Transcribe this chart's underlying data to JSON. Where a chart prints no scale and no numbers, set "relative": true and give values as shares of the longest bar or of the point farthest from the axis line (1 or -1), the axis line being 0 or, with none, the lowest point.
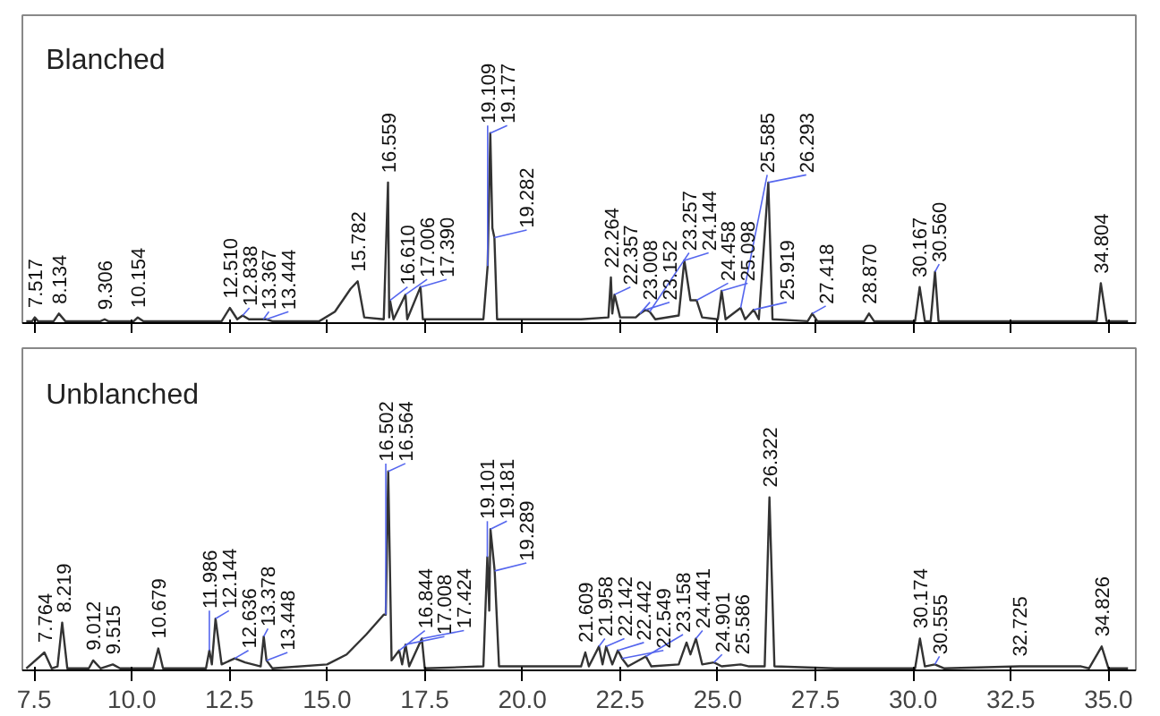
{
  "chart_data": [
    {
      "type": "line",
      "title": "Blanched",
      "relative": true,
      "tick_labels": false,
      "xlim": [
        7.2,
        35.7
      ],
      "xticks": [
        {
          "value": 7.5,
          "label": null
        },
        {
          "value": 10,
          "label": null
        },
        {
          "value": 12.5,
          "label": null
        },
        {
          "value": 15,
          "label": null
        },
        {
          "value": 17.5,
          "label": null
        },
        {
          "value": 20,
          "label": null
        },
        {
          "value": 22.5,
          "label": null
        },
        {
          "value": 25,
          "label": null
        },
        {
          "value": 27.5,
          "label": null
        },
        {
          "value": 30,
          "label": null
        },
        {
          "value": 32.5,
          "label": null
        },
        {
          "value": 35,
          "label": null
        }
      ],
      "series": [
        {
          "color": "#333333",
          "x": [
            7.3,
            7.45,
            7.517,
            7.6,
            8.0,
            8.134,
            8.3,
            9.2,
            9.306,
            9.4,
            10.05,
            10.154,
            10.3,
            12.3,
            12.51,
            12.7,
            12.838,
            13.0,
            13.367,
            13.444,
            13.6,
            14.8,
            15.2,
            15.6,
            15.782,
            15.95,
            16.45,
            16.559,
            16.59,
            16.61,
            16.7,
            17.006,
            17.05,
            17.39,
            17.45,
            19.0,
            19.109,
            19.177,
            19.23,
            19.282,
            19.35,
            20.5,
            21.5,
            22.2,
            22.264,
            22.3,
            22.357,
            22.5,
            22.9,
            23.008,
            23.152,
            23.257,
            23.4,
            24.0,
            24.144,
            24.3,
            24.458,
            24.6,
            25.0,
            25.098,
            25.2,
            25.585,
            25.7,
            25.919,
            26.05,
            26.293,
            26.4,
            27.3,
            27.418,
            27.55,
            28.75,
            28.87,
            29.0,
            30.05,
            30.167,
            30.3,
            30.45,
            30.56,
            30.65,
            32.0,
            34.7,
            34.804,
            34.95,
            35.5
          ],
          "values": [
            0.01,
            0.01,
            0.03,
            0.01,
            0.01,
            0.05,
            0.01,
            0.01,
            0.02,
            0.01,
            0.01,
            0.03,
            0.01,
            0.01,
            0.08,
            0.02,
            0.04,
            0.02,
            0.02,
            0.02,
            0.01,
            0.01,
            0.06,
            0.18,
            0.22,
            0.03,
            0.02,
            0.74,
            0.03,
            0.12,
            0.02,
            0.15,
            0.02,
            0.19,
            0.02,
            0.02,
            0.3,
            1.0,
            0.5,
            0.45,
            0.02,
            0.02,
            0.02,
            0.03,
            0.24,
            0.05,
            0.15,
            0.03,
            0.03,
            0.05,
            0.07,
            0.06,
            0.02,
            0.04,
            0.33,
            0.12,
            0.12,
            0.03,
            0.02,
            0.17,
            0.02,
            0.08,
            0.02,
            0.07,
            0.02,
            0.74,
            0.02,
            0.01,
            0.05,
            0.01,
            0.01,
            0.05,
            0.01,
            0.01,
            0.19,
            0.01,
            0.01,
            0.27,
            0.01,
            0.01,
            0.01,
            0.21,
            0.01,
            0.01
          ]
        }
      ],
      "annotations": [
        {
          "text": "7.517",
          "x": 7.517,
          "y": 0.03
        },
        {
          "text": "8.134",
          "x": 8.134,
          "y": 0.05
        },
        {
          "text": "9.306",
          "x": 9.306,
          "y": 0.02
        },
        {
          "text": "10.154",
          "x": 10.154,
          "y": 0.03
        },
        {
          "text": "12.510",
          "x": 12.51,
          "y": 0.08
        },
        {
          "text": "12.838",
          "x": 12.838,
          "y": 0.04
        },
        {
          "text": "13.367",
          "x": 13.367,
          "y": 0.02
        },
        {
          "text": "13.444",
          "x": 13.444,
          "y": 0.02
        },
        {
          "text": "15.782",
          "x": 15.782,
          "y": 0.22
        },
        {
          "text": "16.559",
          "x": 16.559,
          "y": 0.74
        },
        {
          "text": "16.610",
          "x": 16.61,
          "y": 0.12
        },
        {
          "text": "17.006",
          "x": 17.006,
          "y": 0.15
        },
        {
          "text": "17.390",
          "x": 17.39,
          "y": 0.19
        },
        {
          "text": "19.109",
          "x": 19.109,
          "y": 0.3
        },
        {
          "text": "19.177",
          "x": 19.177,
          "y": 1.0
        },
        {
          "text": "19.282",
          "x": 19.282,
          "y": 0.45
        },
        {
          "text": "22.264",
          "x": 22.264,
          "y": 0.24
        },
        {
          "text": "22.357",
          "x": 22.357,
          "y": 0.15
        },
        {
          "text": "23.008",
          "x": 23.008,
          "y": 0.05
        },
        {
          "text": "23.152",
          "x": 23.152,
          "y": 0.07
        },
        {
          "text": "23.257",
          "x": 23.257,
          "y": 0.06
        },
        {
          "text": "24.144",
          "x": 24.144,
          "y": 0.33
        },
        {
          "text": "24.458",
          "x": 24.458,
          "y": 0.12
        },
        {
          "text": "25.098",
          "x": 25.098,
          "y": 0.17
        },
        {
          "text": "25.585",
          "x": 25.585,
          "y": 0.08
        },
        {
          "text": "25.919",
          "x": 25.919,
          "y": 0.07
        },
        {
          "text": "26.293",
          "x": 26.293,
          "y": 0.74
        },
        {
          "text": "27.418",
          "x": 27.418,
          "y": 0.05
        },
        {
          "text": "28.870",
          "x": 28.87,
          "y": 0.05
        },
        {
          "text": "30.167",
          "x": 30.167,
          "y": 0.19
        },
        {
          "text": "30.560",
          "x": 30.56,
          "y": 0.27
        },
        {
          "text": "34.804",
          "x": 34.804,
          "y": 0.21
        }
      ]
    },
    {
      "type": "line",
      "title": "Unblanched",
      "relative": true,
      "tick_labels": "x",
      "xlim": [
        7.2,
        35.7
      ],
      "xticks": [
        {
          "value": 7.5,
          "label": "7.5"
        },
        {
          "value": 10,
          "label": "10.0"
        },
        {
          "value": 12.5,
          "label": "12.5"
        },
        {
          "value": 15,
          "label": "15.0"
        },
        {
          "value": 17.5,
          "label": "17.5"
        },
        {
          "value": 20,
          "label": "20.0"
        },
        {
          "value": 22.5,
          "label": "22.5"
        },
        {
          "value": 25,
          "label": "25.0"
        },
        {
          "value": 27.5,
          "label": "27.5"
        },
        {
          "value": 30,
          "label": "30.0"
        },
        {
          "value": 32.5,
          "label": "32.5"
        },
        {
          "value": 35,
          "label": "35.0"
        }
      ],
      "series": [
        {
          "color": "#333333",
          "x": [
            7.3,
            7.764,
            7.95,
            8.1,
            8.219,
            8.35,
            8.9,
            9.012,
            9.2,
            9.515,
            9.7,
            10.55,
            10.679,
            10.8,
            11.9,
            11.986,
            12.05,
            12.144,
            12.3,
            12.636,
            12.9,
            13.3,
            13.378,
            13.448,
            13.6,
            15.0,
            15.5,
            16.0,
            16.45,
            16.502,
            16.564,
            16.65,
            16.844,
            16.92,
            17.008,
            17.1,
            17.424,
            17.5,
            19.0,
            19.101,
            19.15,
            19.181,
            19.289,
            19.4,
            21.5,
            21.609,
            21.7,
            21.958,
            22.05,
            22.142,
            22.3,
            22.442,
            22.549,
            22.7,
            23.158,
            23.3,
            24.0,
            24.2,
            24.3,
            24.441,
            24.6,
            24.901,
            25.1,
            25.586,
            25.8,
            26.2,
            26.322,
            26.45,
            28.0,
            30.05,
            30.174,
            30.3,
            30.555,
            30.8,
            32.725,
            34.3,
            34.5,
            34.826,
            35.0,
            35.5
          ],
          "values": [
            0.01,
            0.09,
            0.01,
            0.02,
            0.24,
            0.01,
            0.01,
            0.05,
            0.01,
            0.03,
            0.01,
            0.01,
            0.11,
            0.01,
            0.01,
            0.1,
            0.03,
            0.26,
            0.03,
            0.06,
            0.04,
            0.02,
            0.17,
            0.05,
            0.01,
            0.03,
            0.08,
            0.18,
            0.28,
            0.28,
            1.0,
            0.05,
            0.1,
            0.03,
            0.13,
            0.02,
            0.16,
            0.01,
            0.02,
            0.57,
            0.3,
            0.71,
            0.5,
            0.02,
            0.02,
            0.09,
            0.02,
            0.12,
            0.03,
            0.12,
            0.03,
            0.1,
            0.06,
            0.02,
            0.07,
            0.02,
            0.03,
            0.14,
            0.08,
            0.16,
            0.03,
            0.04,
            0.02,
            0.03,
            0.02,
            0.02,
            0.87,
            0.02,
            0.01,
            0.01,
            0.16,
            0.02,
            0.03,
            0.01,
            0.02,
            0.02,
            0.01,
            0.12,
            0.01,
            0.01
          ]
        }
      ],
      "annotations": [
        {
          "text": "7.764",
          "x": 7.764,
          "y": 0.09
        },
        {
          "text": "8.219",
          "x": 8.219,
          "y": 0.24
        },
        {
          "text": "9.012",
          "x": 9.012,
          "y": 0.05
        },
        {
          "text": "9.515",
          "x": 9.515,
          "y": 0.03
        },
        {
          "text": "10.679",
          "x": 10.679,
          "y": 0.11
        },
        {
          "text": "11.986",
          "x": 11.986,
          "y": 0.1
        },
        {
          "text": "12.144",
          "x": 12.144,
          "y": 0.26
        },
        {
          "text": "12.636",
          "x": 12.636,
          "y": 0.06
        },
        {
          "text": "13.378",
          "x": 13.378,
          "y": 0.17
        },
        {
          "text": "13.448",
          "x": 13.448,
          "y": 0.05
        },
        {
          "text": "16.502",
          "x": 16.502,
          "y": 0.28
        },
        {
          "text": "16.564",
          "x": 16.564,
          "y": 1.0
        },
        {
          "text": "16.844",
          "x": 16.844,
          "y": 0.1
        },
        {
          "text": "17.008",
          "x": 17.008,
          "y": 0.13
        },
        {
          "text": "17.424",
          "x": 17.424,
          "y": 0.16
        },
        {
          "text": "19.101",
          "x": 19.101,
          "y": 0.57
        },
        {
          "text": "19.181",
          "x": 19.181,
          "y": 0.71
        },
        {
          "text": "19.289",
          "x": 19.289,
          "y": 0.5
        },
        {
          "text": "21.609",
          "x": 21.609,
          "y": 0.09
        },
        {
          "text": "21.958",
          "x": 21.958,
          "y": 0.12
        },
        {
          "text": "22.142",
          "x": 22.142,
          "y": 0.12
        },
        {
          "text": "22.442",
          "x": 22.442,
          "y": 0.1
        },
        {
          "text": "22.549",
          "x": 22.549,
          "y": 0.06
        },
        {
          "text": "23.158",
          "x": 23.158,
          "y": 0.07
        },
        {
          "text": "24.441",
          "x": 24.441,
          "y": 0.16
        },
        {
          "text": "24.901",
          "x": 24.901,
          "y": 0.04
        },
        {
          "text": "25.586",
          "x": 25.586,
          "y": 0.03
        },
        {
          "text": "26.322",
          "x": 26.322,
          "y": 0.87
        },
        {
          "text": "30.174",
          "x": 30.174,
          "y": 0.16
        },
        {
          "text": "30.555",
          "x": 30.555,
          "y": 0.03
        },
        {
          "text": "32.725",
          "x": 32.725,
          "y": 0.02
        },
        {
          "text": "34.826",
          "x": 34.826,
          "y": 0.12
        }
      ]
    }
  ]
}
